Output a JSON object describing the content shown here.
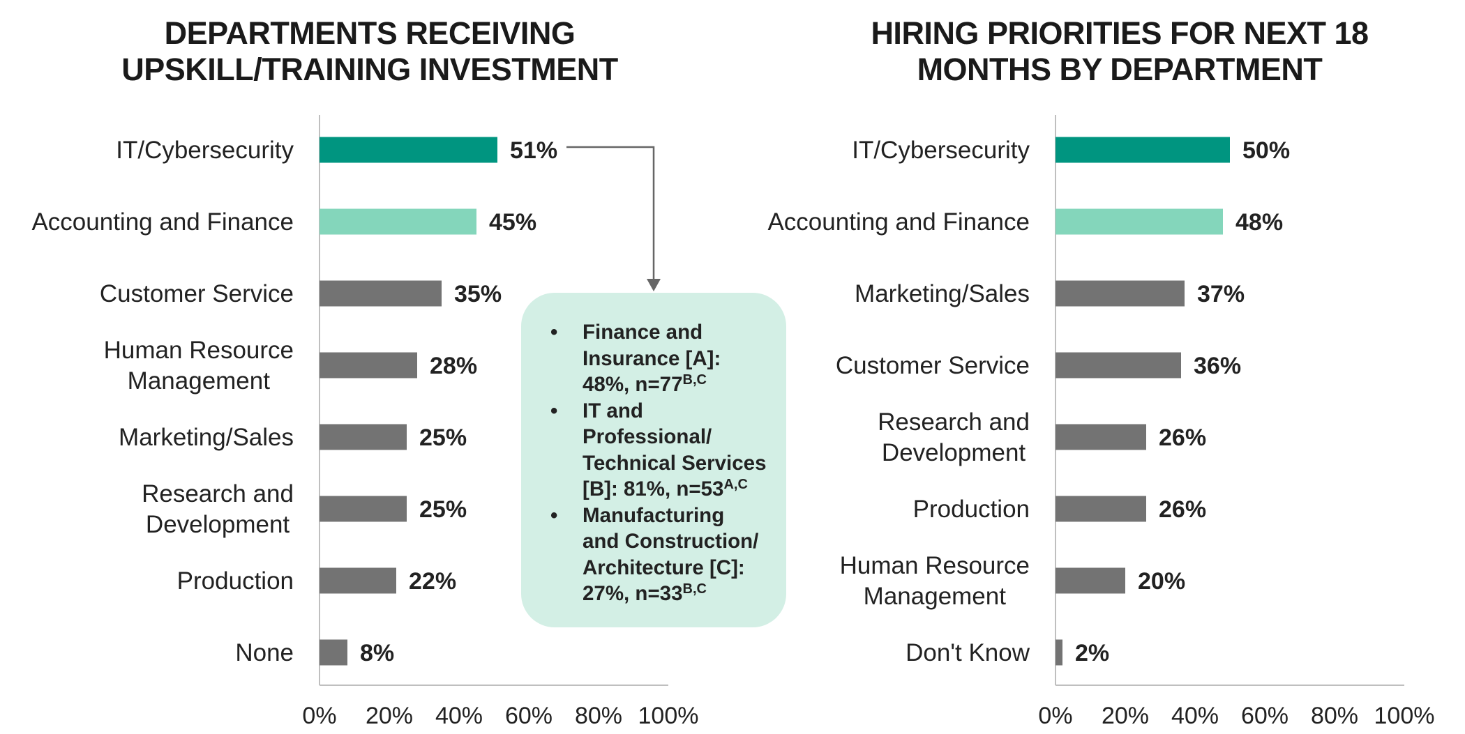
{
  "chart_data": [
    {
      "type": "bar",
      "orientation": "horizontal",
      "title": [
        "DEPARTMENTS RECEIVING",
        "UPSKILL/TRAINING INVESTMENT"
      ],
      "categories": [
        [
          "IT/Cybersecurity"
        ],
        [
          "Accounting and Finance"
        ],
        [
          "Customer Service"
        ],
        [
          "Human Resource",
          "Management"
        ],
        [
          "Marketing/Sales"
        ],
        [
          "Research and",
          "Development"
        ],
        [
          "Production"
        ],
        [
          "None"
        ]
      ],
      "values": [
        51,
        45,
        35,
        28,
        25,
        25,
        22,
        8
      ],
      "value_labels": [
        "51%",
        "45%",
        "35%",
        "28%",
        "25%",
        "25%",
        "22%",
        "8%"
      ],
      "bar_colors": [
        "#009580",
        "#84d6bb",
        "#737373",
        "#737373",
        "#737373",
        "#737373",
        "#737373",
        "#737373"
      ],
      "xlim": [
        0,
        100
      ],
      "xticks": [
        "0%",
        "20%",
        "40%",
        "60%",
        "80%",
        "100%"
      ],
      "grid": false,
      "callout": {
        "items": [
          {
            "text": "Finance and Insurance [A]: 48%, n=77",
            "lines": [
              "Finance and",
              "Insurance [A]:",
              "48%, n=77"
            ],
            "sup": "B,C"
          },
          {
            "text": "IT and Professional/ Technical Services [B]: 81%, n=53",
            "lines": [
              "IT and",
              "Professional/",
              "Technical Services",
              "[B]: 81%, n=53"
            ],
            "sup": "A,C"
          },
          {
            "text": "Manufacturing and Construction/ Architecture [C]: 27%, n=33",
            "lines": [
              "Manufacturing",
              "and Construction/",
              "Architecture [C]:",
              "27%, n=33"
            ],
            "sup": "B,C"
          }
        ]
      }
    },
    {
      "type": "bar",
      "orientation": "horizontal",
      "title": [
        "HIRING PRIORITIES FOR NEXT 18",
        "MONTHS BY DEPARTMENT"
      ],
      "categories": [
        [
          "IT/Cybersecurity"
        ],
        [
          "Accounting and Finance"
        ],
        [
          "Marketing/Sales"
        ],
        [
          "Customer Service"
        ],
        [
          "Research and",
          "Development"
        ],
        [
          "Production"
        ],
        [
          "Human Resource",
          "Management"
        ],
        [
          "Don't Know"
        ]
      ],
      "values": [
        50,
        48,
        37,
        36,
        26,
        26,
        20,
        2
      ],
      "value_labels": [
        "50%",
        "48%",
        "37%",
        "36%",
        "26%",
        "26%",
        "20%",
        "2%"
      ],
      "bar_colors": [
        "#009580",
        "#84d6bb",
        "#737373",
        "#737373",
        "#737373",
        "#737373",
        "#737373",
        "#737373"
      ],
      "xlim": [
        0,
        100
      ],
      "xticks": [
        "0%",
        "20%",
        "40%",
        "60%",
        "80%",
        "100%"
      ],
      "grid": false
    }
  ]
}
